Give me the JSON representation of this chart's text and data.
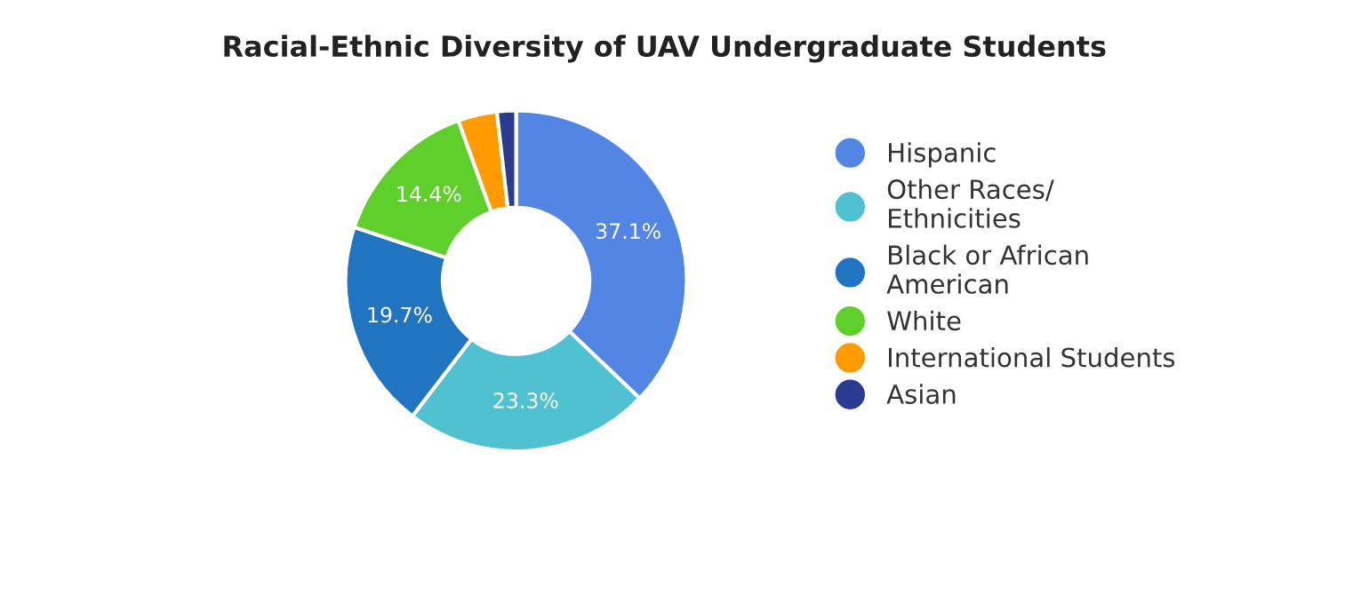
{
  "chart_data": {
    "type": "donut",
    "title": "Racial-Ethnic Diversity of UAV Undergraduate Students",
    "categories": [
      "Hispanic",
      "Other Races/\nEthnicities",
      "Black or African\nAmerican",
      "White",
      "International Students",
      "Asian"
    ],
    "values": [
      37.1,
      23.3,
      19.7,
      14.4,
      3.7,
      1.8
    ],
    "colors": [
      "#5386e4",
      "#4fc1d0",
      "#2174c0",
      "#5ecf2b",
      "#ff9a00",
      "#2b3b8f"
    ],
    "value_labels": [
      "37.1%",
      "23.3%",
      "19.7%",
      "14.4%",
      null,
      null
    ],
    "legend": "right"
  }
}
